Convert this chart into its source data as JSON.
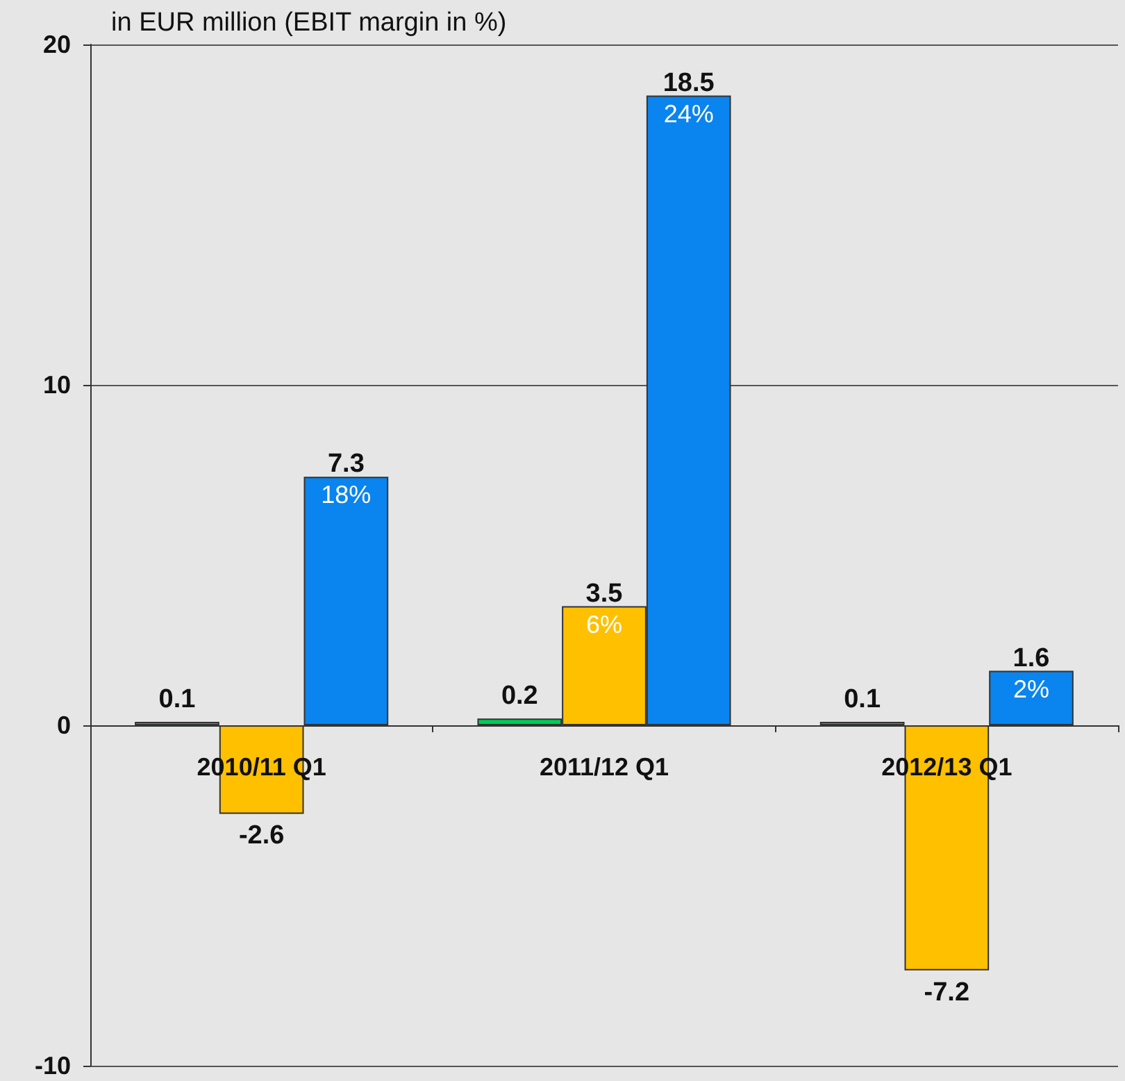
{
  "chart_data": {
    "type": "bar",
    "ylabel": "in EUR million (EBIT margin in %)",
    "categories": [
      "2010/11 Q1",
      "2011/12 Q1",
      "2012/13 Q1"
    ],
    "series": [
      {
        "color": "#00cc55",
        "values": [
          0.1,
          0.2,
          0.1
        ],
        "value_labels": [
          "0.1",
          "0.2",
          "0.1"
        ]
      },
      {
        "color": "#ffc000",
        "values": [
          -2.6,
          3.5,
          -7.2
        ],
        "value_labels": [
          "-2.6",
          "3.5\n6%",
          "-7.2"
        ]
      },
      {
        "color": "#0a84ee",
        "values": [
          7.3,
          18.5,
          1.6
        ],
        "value_labels": [
          "7.3\n18%",
          "18.5\n24%",
          "1.6\n2%"
        ]
      }
    ],
    "ylim": [
      -10,
      20
    ],
    "yticks": [
      -10,
      0,
      10,
      20
    ],
    "grid": "y"
  }
}
